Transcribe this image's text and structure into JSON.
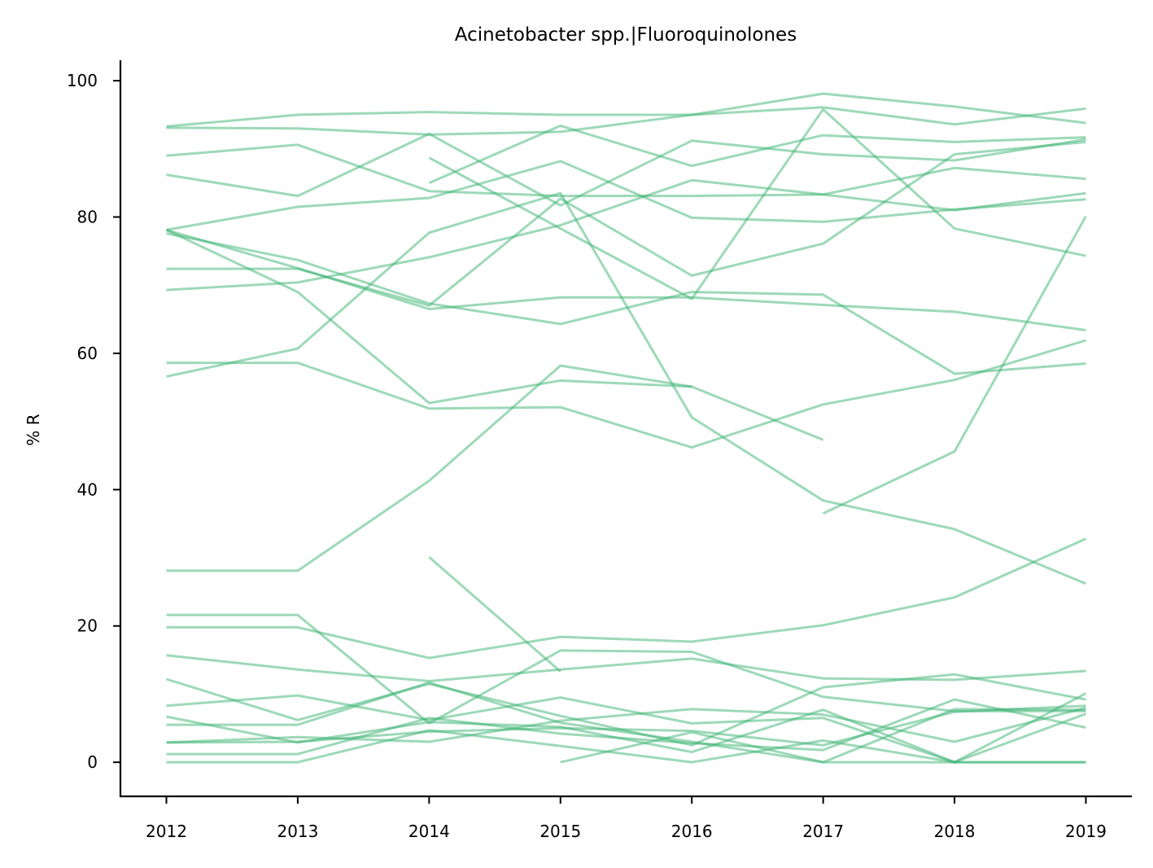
{
  "chart_data": {
    "type": "line",
    "title": "Acinetobacter spp.|Fluoroquinolones",
    "xlabel": "",
    "ylabel": "% R",
    "x": [
      2012,
      2013,
      2014,
      2015,
      2016,
      2017,
      2018,
      2019
    ],
    "xlim": [
      2011.65,
      2019.35
    ],
    "ylim": [
      -5,
      103
    ],
    "yticks": [
      0,
      20,
      40,
      60,
      80,
      100
    ],
    "grid": false,
    "legend": "none",
    "line_color": "#3cb371",
    "series": [
      {
        "values": [
          93.3,
          95.0,
          95.4,
          95.0,
          95.0,
          98.1,
          96.2,
          93.8
        ]
      },
      {
        "values": [
          93.1,
          93.0,
          92.1,
          92.5,
          95.0,
          96.1,
          93.6,
          95.9
        ]
      },
      {
        "values": [
          89.0,
          90.6,
          83.8,
          83.1,
          83.1,
          83.3,
          87.2,
          85.6
        ]
      },
      {
        "values": [
          86.2,
          83.1,
          92.2,
          81.7,
          91.2,
          89.2,
          88.3,
          91.4
        ]
      },
      {
        "values": [
          null,
          null,
          85.0,
          93.4,
          87.5,
          92.0,
          91.0,
          91.7
        ]
      },
      {
        "values": [
          null,
          null,
          88.7,
          78.3,
          68.0,
          95.8,
          78.3,
          74.3
        ]
      },
      {
        "values": [
          78.1,
          81.5,
          82.8,
          88.2,
          79.9,
          79.3,
          81.1,
          82.6
        ]
      },
      {
        "values": [
          78.1,
          72.5,
          66.5,
          68.2,
          68.2,
          67.1,
          66.1,
          63.4
        ]
      },
      {
        "values": [
          77.6,
          73.7,
          67.3,
          64.3,
          69.0,
          68.6,
          57.0,
          58.5
        ]
      },
      {
        "values": [
          72.4,
          72.4,
          67.0,
          82.7,
          71.4,
          76.1,
          89.2,
          91.0
        ]
      },
      {
        "values": [
          69.3,
          70.4,
          74.1,
          78.8,
          85.4,
          83.3,
          81.0,
          83.5
        ]
      },
      {
        "values": [
          58.6,
          58.6,
          51.9,
          52.1,
          46.2,
          52.5,
          56.1,
          61.9
        ]
      },
      {
        "values": [
          56.6,
          60.7,
          77.7,
          83.5,
          50.6,
          38.4,
          34.2,
          26.2
        ]
      },
      {
        "values": [
          78.1,
          69.0,
          52.7,
          56.0,
          55.1,
          47.3,
          null,
          null
        ]
      },
      {
        "values": [
          28.1,
          28.1,
          41.3,
          58.2,
          55.1,
          null,
          null,
          null
        ]
      },
      {
        "values": [
          null,
          null,
          null,
          null,
          null,
          36.5,
          45.6,
          80.1
        ]
      },
      {
        "values": [
          21.6,
          21.6,
          5.7,
          16.4,
          16.2,
          9.6,
          7.5,
          7.5
        ]
      },
      {
        "values": [
          19.8,
          19.8,
          15.3,
          18.4,
          17.7,
          20.1,
          24.2,
          32.8
        ]
      },
      {
        "values": [
          15.7,
          13.6,
          11.9,
          13.6,
          15.2,
          12.3,
          12.1,
          13.4
        ]
      },
      {
        "values": [
          null,
          null,
          30.1,
          13.3,
          null,
          null,
          null,
          null
        ]
      },
      {
        "values": [
          12.2,
          6.2,
          11.5,
          6.8,
          2.5,
          11.0,
          12.9,
          9.2
        ]
      },
      {
        "values": [
          8.3,
          9.8,
          6.2,
          9.5,
          5.7,
          6.5,
          0.0,
          10.1
        ]
      },
      {
        "values": [
          6.7,
          2.9,
          5.9,
          5.2,
          1.5,
          7.7,
          0.0,
          7.1
        ]
      },
      {
        "values": [
          5.5,
          5.5,
          11.7,
          5.8,
          3.0,
          0.0,
          0.0,
          0.0
        ]
      },
      {
        "values": [
          2.9,
          3.7,
          3.0,
          6.1,
          7.8,
          7.0,
          3.0,
          8.0
        ]
      },
      {
        "values": [
          2.9,
          3.0,
          4.5,
          5.0,
          4.6,
          2.5,
          7.4,
          8.3
        ]
      },
      {
        "values": [
          1.2,
          1.2,
          6.5,
          4.2,
          2.8,
          1.8,
          9.2,
          5.1
        ]
      },
      {
        "values": [
          0.0,
          0.0,
          4.7,
          2.4,
          0.0,
          3.2,
          0.0,
          0.0
        ]
      },
      {
        "values": [
          null,
          null,
          null,
          0.0,
          4.4,
          0.0,
          7.8,
          7.7
        ]
      }
    ]
  }
}
